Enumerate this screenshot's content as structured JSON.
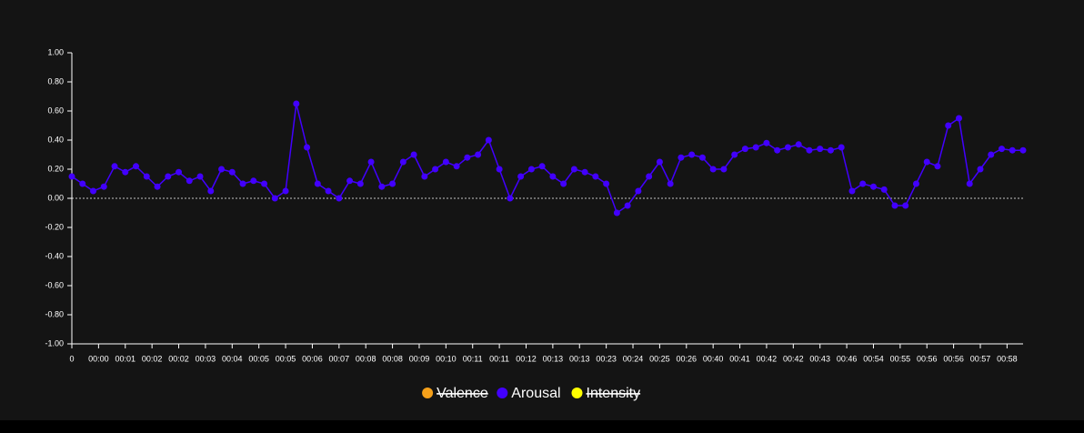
{
  "chart_data": {
    "type": "line",
    "x": [
      0,
      4,
      8,
      12,
      16,
      20,
      24,
      28,
      32,
      36,
      40,
      44,
      48,
      52,
      56,
      60,
      64,
      68,
      72,
      76,
      80,
      84,
      88,
      92,
      96,
      100,
      104,
      108,
      112,
      116,
      120,
      124,
      128,
      132,
      136,
      140,
      144,
      148,
      152,
      156,
      160,
      164,
      168,
      172,
      176,
      180,
      184,
      188,
      192,
      196,
      200,
      204,
      208,
      212,
      216,
      220,
      224,
      228,
      232,
      236,
      240,
      244,
      248,
      252,
      256,
      260,
      264,
      268,
      272,
      276,
      280,
      284,
      288,
      292,
      296,
      300,
      304,
      308,
      312,
      316,
      320,
      324,
      328,
      332,
      336,
      340,
      344,
      348,
      352,
      356
    ],
    "series": [
      {
        "name": "Valence",
        "color": "#f5a01a",
        "hidden": true
      },
      {
        "name": "Arousal",
        "color": "#4200ff",
        "hidden": false,
        "values": [
          0.15,
          0.1,
          0.05,
          0.08,
          0.22,
          0.18,
          0.22,
          0.15,
          0.08,
          0.15,
          0.18,
          0.12,
          0.15,
          0.05,
          0.2,
          0.18,
          0.1,
          0.12,
          0.1,
          0.0,
          0.05,
          0.65,
          0.35,
          0.1,
          0.05,
          0.0,
          0.12,
          0.1,
          0.25,
          0.08,
          0.1,
          0.25,
          0.3,
          0.15,
          0.2,
          0.25,
          0.22,
          0.28,
          0.3,
          0.4,
          0.2,
          0.0,
          0.15,
          0.2,
          0.22,
          0.15,
          0.1,
          0.2,
          0.18,
          0.15,
          0.1,
          -0.1,
          -0.05,
          0.05,
          0.15,
          0.25,
          0.1,
          0.28,
          0.3,
          0.28,
          0.2,
          0.2,
          0.3,
          0.34,
          0.35,
          0.38,
          0.33,
          0.35,
          0.37,
          0.33,
          0.34,
          0.33,
          0.35,
          0.05,
          0.1,
          0.08,
          0.06,
          -0.05,
          -0.05,
          0.1,
          0.25,
          0.22,
          0.5,
          0.55,
          0.1,
          0.2,
          0.3,
          0.34,
          0.33,
          0.33
        ]
      },
      {
        "name": "Intensity",
        "color": "#ffff00",
        "hidden": true
      }
    ],
    "xlim": [
      0,
      356
    ],
    "ylim": [
      -1,
      1
    ],
    "yticks": [
      {
        "value": -1,
        "label": "-1.00"
      },
      {
        "value": -0.8,
        "label": "-0.80"
      },
      {
        "value": -0.6,
        "label": "-0.60"
      },
      {
        "value": -0.4,
        "label": "-0.40"
      },
      {
        "value": -0.2,
        "label": "-0.20"
      },
      {
        "value": 0,
        "label": "0.00"
      },
      {
        "value": 0.2,
        "label": "0.20"
      },
      {
        "value": 0.4,
        "label": "0.40"
      },
      {
        "value": 0.6,
        "label": "0.60"
      },
      {
        "value": 0.8,
        "label": "0.80"
      },
      {
        "value": 1,
        "label": "1.00"
      }
    ],
    "xticks": [
      0,
      {
        "value": 10,
        "label": "00:00"
      },
      {
        "value": 20,
        "label": "00:01"
      },
      {
        "value": 30,
        "label": "00:02"
      },
      {
        "value": 40,
        "label": "00:02"
      },
      {
        "value": 50,
        "label": "00:03"
      },
      {
        "value": 60,
        "label": "00:04"
      },
      {
        "value": 70,
        "label": "00:05"
      },
      {
        "value": 80,
        "label": "00:05"
      },
      {
        "value": 90,
        "label": "00:06"
      },
      {
        "value": 100,
        "label": "00:07"
      },
      {
        "value": 110,
        "label": "00:08"
      },
      {
        "value": 120,
        "label": "00:08"
      },
      {
        "value": 130,
        "label": "00:09"
      },
      {
        "value": 140,
        "label": "00:10"
      },
      {
        "value": 150,
        "label": "00:11"
      },
      {
        "value": 160,
        "label": "00:11"
      },
      {
        "value": 170,
        "label": "00:12"
      },
      {
        "value": 180,
        "label": "00:13"
      },
      {
        "value": 190,
        "label": "00:13"
      },
      {
        "value": 200,
        "label": "00:23"
      },
      {
        "value": 210,
        "label": "00:24"
      },
      {
        "value": 220,
        "label": "00:25"
      },
      {
        "value": 230,
        "label": "00:26"
      },
      {
        "value": 240,
        "label": "00:40"
      },
      {
        "value": 250,
        "label": "00:41"
      },
      {
        "value": 260,
        "label": "00:42"
      },
      {
        "value": 270,
        "label": "00:42"
      },
      {
        "value": 280,
        "label": "00:43"
      },
      {
        "value": 290,
        "label": "00:46"
      },
      {
        "value": 300,
        "label": "00:54"
      },
      {
        "value": 310,
        "label": "00:55"
      },
      {
        "value": 320,
        "label": "00:56"
      },
      {
        "value": 330,
        "label": "00:56"
      },
      {
        "value": 340,
        "label": "00:57"
      },
      {
        "value": 350,
        "label": "00:58"
      }
    ],
    "zero_line": true
  }
}
